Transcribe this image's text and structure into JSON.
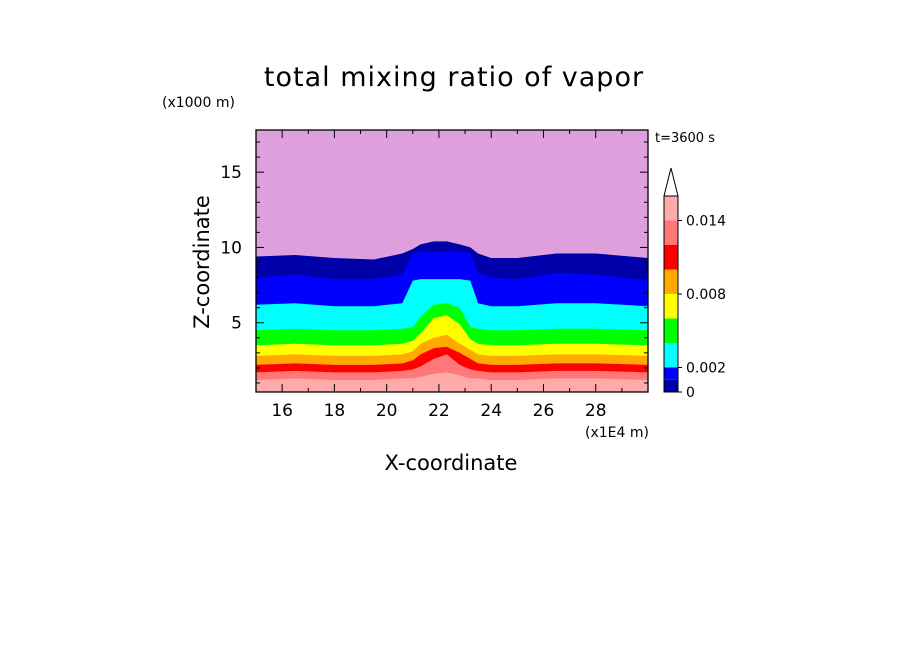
{
  "chart_data": {
    "type": "heatmap",
    "title": "total mixing ratio of vapor",
    "xlabel": "X-coordinate",
    "ylabel": "Z-coordinate",
    "x_unit": "(x1E4 m)",
    "y_unit": "(x1000 m)",
    "time_label": "t=3600 s",
    "xlim": [
      15,
      30
    ],
    "ylim": [
      0.4,
      17.8
    ],
    "x_ticks": [
      16,
      18,
      20,
      22,
      24,
      26,
      28
    ],
    "y_ticks": [
      5,
      10,
      15
    ],
    "colorbar": {
      "levels": [
        0,
        0.001,
        0.002,
        0.004,
        0.006,
        0.008,
        0.01,
        0.012,
        0.014,
        0.016
      ],
      "labels": [
        "0",
        "0.002",
        "0.008",
        "0.014"
      ],
      "label_values": [
        0,
        0.002,
        0.008,
        0.014
      ],
      "colors": [
        "#dda0dd",
        "#0000aa",
        "#0000ff",
        "#00ffff",
        "#00ff00",
        "#ffff00",
        "#ffaa00",
        "#ff0000",
        "#ff7777",
        "#ffaaaa"
      ],
      "extend": "max"
    },
    "band_boundaries_m_x1000": {
      "x": [
        15,
        16.5,
        18,
        19.5,
        20.6,
        21.0,
        21.3,
        21.8,
        22.3,
        22.8,
        23.2,
        23.5,
        24.0,
        25.0,
        26.5,
        28.0,
        30.0
      ],
      "levels": [
        [
          9.4,
          9.5,
          9.3,
          9.2,
          9.6,
          9.9,
          10.2,
          10.4,
          10.4,
          10.2,
          10.0,
          9.6,
          9.3,
          9.3,
          9.6,
          9.6,
          9.3
        ],
        [
          8.0,
          8.2,
          7.9,
          7.9,
          8.2,
          9.6,
          9.7,
          9.7,
          9.7,
          9.7,
          9.6,
          8.3,
          8.0,
          7.9,
          8.3,
          8.2,
          7.8
        ],
        [
          6.2,
          6.3,
          6.1,
          6.1,
          6.3,
          7.8,
          7.9,
          7.9,
          7.9,
          7.9,
          7.8,
          6.3,
          6.1,
          6.1,
          6.3,
          6.3,
          6.1
        ],
        [
          4.5,
          4.6,
          4.5,
          4.5,
          4.6,
          4.7,
          5.4,
          6.2,
          6.3,
          6.0,
          4.7,
          4.6,
          4.5,
          4.5,
          4.6,
          4.6,
          4.5
        ],
        [
          3.5,
          3.6,
          3.5,
          3.5,
          3.6,
          3.8,
          4.3,
          5.3,
          5.5,
          4.9,
          3.9,
          3.6,
          3.5,
          3.5,
          3.6,
          3.6,
          3.5
        ],
        [
          2.8,
          2.9,
          2.8,
          2.8,
          2.9,
          3.1,
          3.6,
          4.0,
          4.2,
          3.6,
          3.2,
          2.9,
          2.8,
          2.8,
          2.9,
          2.9,
          2.8
        ],
        [
          2.2,
          2.3,
          2.2,
          2.2,
          2.3,
          2.5,
          2.9,
          3.3,
          3.4,
          3.0,
          2.6,
          2.3,
          2.2,
          2.2,
          2.3,
          2.3,
          2.2
        ],
        [
          1.7,
          1.8,
          1.7,
          1.7,
          1.8,
          1.9,
          2.1,
          2.6,
          2.9,
          2.2,
          1.9,
          1.8,
          1.7,
          1.7,
          1.8,
          1.8,
          1.7
        ],
        [
          1.2,
          1.3,
          1.2,
          1.2,
          1.3,
          1.3,
          1.4,
          1.6,
          1.7,
          1.5,
          1.3,
          1.3,
          1.2,
          1.2,
          1.3,
          1.3,
          1.2
        ]
      ]
    }
  }
}
